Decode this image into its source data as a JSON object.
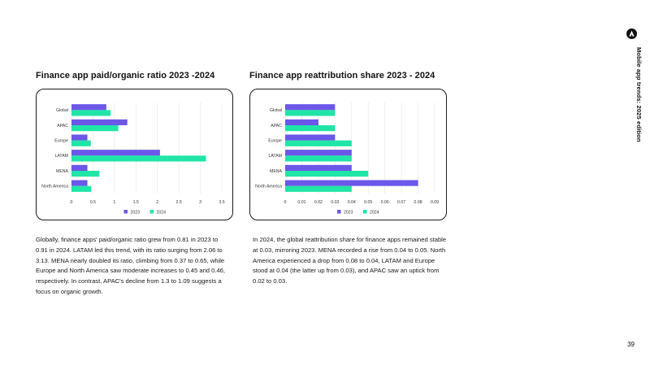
{
  "side_header": {
    "title": "Mobile app trends: 2025 edition",
    "logo_icon": "appsflyer-logo-icon"
  },
  "page_number": "39",
  "colors": {
    "series_2023": "#6b57e8",
    "series_2024": "#1fe5a6",
    "grid": "#e6e6e6"
  },
  "charts": {
    "left": {
      "title": "Finance app paid/organic ratio 2023 -2024",
      "description": "Globally, finance apps' paid/organic ratio grew from 0.81 in 2023 to 0.91 in 2024. LATAM led this trend, with its ratio surging from 2.06 to 3.13. MENA nearly doubled its ratio, climbing from 0.37 to 0.65, while Europe and North America saw moderate increases to 0.45 and 0.46, respectively. In contrast, APAC's decline from 1.3 to 1.09 suggests a focus on organic growth."
    },
    "right": {
      "title": "Finance app reattribution share 2023 - 2024",
      "description": "In 2024, the global reattribution share for finance apps remained stable at 0.03, mirroring 2023. MENA recorded a rise from 0.04 to 0.05. North America experienced a drop from 0.08 to 0.04, LATAM and Europe stood at 0.04 (the latter up from 0.03), and APAC saw an uptick from 0.02 to 0.03."
    }
  },
  "chart_data": [
    {
      "type": "bar",
      "orientation": "horizontal",
      "title": "Finance app paid/organic ratio 2023 -2024",
      "categories": [
        "Global",
        "APAC",
        "Europe",
        "LATAM",
        "MENA",
        "North America"
      ],
      "series": [
        {
          "name": "2023",
          "values": [
            0.81,
            1.3,
            0.37,
            2.06,
            0.37,
            0.37
          ]
        },
        {
          "name": "2024",
          "values": [
            0.91,
            1.09,
            0.45,
            3.13,
            0.65,
            0.46
          ]
        }
      ],
      "xlim": [
        0,
        3.5
      ],
      "xticks": [
        "0",
        "0.5",
        "1",
        "1.5",
        "2",
        "2.5",
        "3",
        "3.5"
      ],
      "grid": true,
      "legend": "bottom"
    },
    {
      "type": "bar",
      "orientation": "horizontal",
      "title": "Finance app reattribution share 2023 - 2024",
      "categories": [
        "Global",
        "APAC",
        "Europe",
        "LATAM",
        "MENA",
        "North America"
      ],
      "series": [
        {
          "name": "2023",
          "values": [
            0.03,
            0.02,
            0.03,
            0.04,
            0.04,
            0.08
          ]
        },
        {
          "name": "2024",
          "values": [
            0.03,
            0.03,
            0.04,
            0.04,
            0.05,
            0.04
          ]
        }
      ],
      "xlim": [
        0,
        0.09
      ],
      "xticks": [
        "0",
        "0.01",
        "0.02",
        "0.03",
        "0.04",
        "0.05",
        "0.06",
        "0.07",
        "0.08",
        "0.09"
      ],
      "grid": true,
      "legend": "bottom"
    }
  ]
}
